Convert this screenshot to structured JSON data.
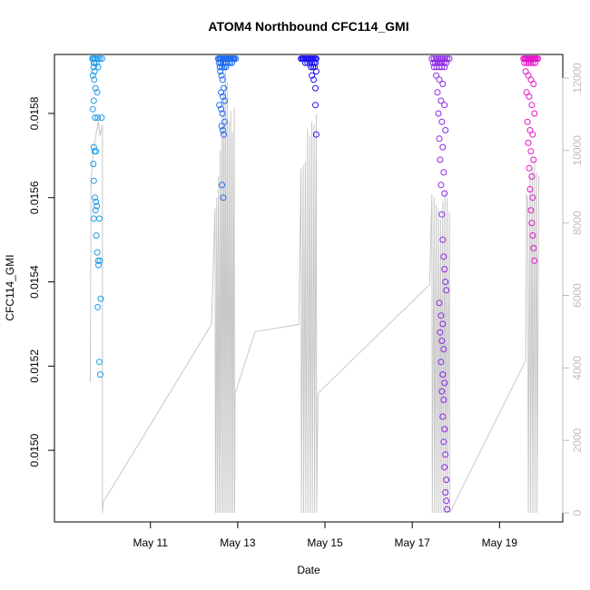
{
  "chart_data": {
    "type": "scatter",
    "title": "ATOM4 Northbound CFC114_GMI",
    "xlabel": "Date",
    "ylabel": "CFC114_GMI",
    "x_range_days": [
      8.8,
      20.45
    ],
    "y_range": [
      0.01483,
      0.01594
    ],
    "y2_range": [
      -250,
      12650
    ],
    "x_ticks": [
      {
        "value": 11,
        "label": "May 11"
      },
      {
        "value": 13,
        "label": "May 13"
      },
      {
        "value": 15,
        "label": "May 15"
      },
      {
        "value": 17,
        "label": "May 17"
      },
      {
        "value": 19,
        "label": "May 19"
      }
    ],
    "y_ticks": [
      {
        "value": 0.015,
        "label": "0.0150"
      },
      {
        "value": 0.0152,
        "label": "0.0152"
      },
      {
        "value": 0.0154,
        "label": "0.0154"
      },
      {
        "value": 0.0156,
        "label": "0.0156"
      },
      {
        "value": 0.0158,
        "label": "0.0158"
      }
    ],
    "y2_ticks": [
      {
        "value": 0,
        "label": "0"
      },
      {
        "value": 2000,
        "label": "2000"
      },
      {
        "value": 4000,
        "label": "4000"
      },
      {
        "value": 6000,
        "label": "6000"
      },
      {
        "value": 8000,
        "label": "8000"
      },
      {
        "value": 10000,
        "label": "10000"
      },
      {
        "value": 12000,
        "label": "12000"
      }
    ],
    "grid": false,
    "legend": "none",
    "altitude_line_color": "#c8c8c8",
    "series": [
      {
        "color": "#1e9be6",
        "x": [
          9.67,
          9.68,
          9.69,
          9.7,
          9.71,
          9.72,
          9.75,
          9.8,
          9.84,
          9.89,
          9.7,
          9.72,
          9.68,
          9.71,
          9.76,
          9.8,
          9.74,
          9.78,
          9.7,
          9.68,
          9.73,
          9.79,
          9.88,
          9.7,
          9.72,
          9.69,
          9.75,
          9.7,
          9.73,
          9.75,
          9.77,
          9.74,
          9.7,
          9.83,
          9.76,
          9.78,
          9.8,
          9.81,
          9.84,
          9.86,
          9.79,
          9.83,
          9.85
        ],
        "y": [
          0.01593,
          0.01593,
          0.01593,
          0.01592,
          0.01592,
          0.01593,
          0.01593,
          0.01593,
          0.01593,
          0.01593,
          0.01591,
          0.0159,
          0.01589,
          0.01588,
          0.01592,
          0.01591,
          0.01586,
          0.01585,
          0.01583,
          0.01581,
          0.01579,
          0.01579,
          0.01579,
          0.01572,
          0.01571,
          0.01568,
          0.01571,
          0.01564,
          0.0156,
          0.01559,
          0.01558,
          0.01557,
          0.01555,
          0.01555,
          0.01551,
          0.01547,
          0.01545,
          0.01544,
          0.01545,
          0.01536,
          0.01534,
          0.01521,
          0.01518
        ]
      },
      {
        "color": "#1e6cf0",
        "x": [
          12.55,
          12.58,
          12.6,
          12.62,
          12.65,
          12.68,
          12.7,
          12.72,
          12.75,
          12.78,
          12.8,
          12.82,
          12.85,
          12.88,
          12.9,
          12.92,
          12.95,
          12.57,
          12.61,
          12.66,
          12.71,
          12.74,
          12.79,
          12.83,
          12.87,
          12.59,
          12.64,
          12.69,
          12.73,
          12.6,
          12.63,
          12.65,
          12.68,
          12.62,
          12.66,
          12.7,
          12.58,
          12.62,
          12.65,
          12.7,
          12.63,
          12.66,
          12.68,
          12.64,
          12.67
        ],
        "y": [
          0.01593,
          0.01593,
          0.01593,
          0.01593,
          0.01593,
          0.01593,
          0.01593,
          0.01593,
          0.01593,
          0.01593,
          0.01593,
          0.01593,
          0.01593,
          0.01593,
          0.01593,
          0.01593,
          0.01593,
          0.01592,
          0.01592,
          0.01592,
          0.01592,
          0.01592,
          0.01592,
          0.01592,
          0.01592,
          0.01591,
          0.01591,
          0.01591,
          0.01591,
          0.0159,
          0.01589,
          0.01588,
          0.01586,
          0.01585,
          0.01584,
          0.01583,
          0.01582,
          0.01581,
          0.0158,
          0.01578,
          0.01577,
          0.01576,
          0.01575,
          0.01563,
          0.0156
        ]
      },
      {
        "color": "#1e14f0",
        "x": [
          14.45,
          14.48,
          14.5,
          14.52,
          14.55,
          14.58,
          14.6,
          14.62,
          14.65,
          14.68,
          14.7,
          14.72,
          14.75,
          14.78,
          14.8,
          14.55,
          14.6,
          14.65,
          14.7,
          14.75,
          14.78,
          14.68,
          14.72,
          14.76,
          14.8,
          14.7,
          14.74,
          14.78,
          14.78,
          14.8
        ],
        "y": [
          0.01593,
          0.01593,
          0.01593,
          0.01593,
          0.01593,
          0.01593,
          0.01593,
          0.01593,
          0.01593,
          0.01593,
          0.01593,
          0.01593,
          0.01593,
          0.01593,
          0.01593,
          0.01592,
          0.01592,
          0.01592,
          0.01592,
          0.01592,
          0.01592,
          0.01591,
          0.01591,
          0.01591,
          0.0159,
          0.01589,
          0.01588,
          0.01586,
          0.01582,
          0.01575
        ]
      },
      {
        "color": "#8c28e6",
        "x": [
          17.45,
          17.5,
          17.55,
          17.6,
          17.65,
          17.7,
          17.75,
          17.8,
          17.85,
          17.48,
          17.53,
          17.58,
          17.63,
          17.68,
          17.73,
          17.78,
          17.5,
          17.56,
          17.62,
          17.68,
          17.74,
          17.55,
          17.62,
          17.7,
          17.58,
          17.66,
          17.74,
          17.6,
          17.68,
          17.76,
          17.62,
          17.7,
          17.64,
          17.72,
          17.66,
          17.74,
          17.68,
          17.7,
          17.72,
          17.74,
          17.76,
          17.78,
          17.62,
          17.66,
          17.7,
          17.64,
          17.68,
          17.72,
          17.66,
          17.7,
          17.74,
          17.68,
          17.72,
          17.7,
          17.74,
          17.72,
          17.76,
          17.74,
          17.78,
          17.76,
          17.78,
          17.8
        ],
        "y": [
          0.01593,
          0.01593,
          0.01593,
          0.01593,
          0.01593,
          0.01593,
          0.01593,
          0.01593,
          0.01593,
          0.01592,
          0.01592,
          0.01592,
          0.01592,
          0.01592,
          0.01592,
          0.01592,
          0.01591,
          0.01591,
          0.01591,
          0.01591,
          0.01591,
          0.01589,
          0.01588,
          0.01587,
          0.01585,
          0.01583,
          0.01582,
          0.0158,
          0.01578,
          0.01576,
          0.01574,
          0.01572,
          0.01569,
          0.01566,
          0.01563,
          0.01561,
          0.01556,
          0.0155,
          0.01546,
          0.01543,
          0.0154,
          0.01538,
          0.01535,
          0.01532,
          0.0153,
          0.01528,
          0.01526,
          0.01524,
          0.01521,
          0.01518,
          0.01516,
          0.01514,
          0.01512,
          0.01508,
          0.01505,
          0.01502,
          0.01499,
          0.01496,
          0.01493,
          0.0149,
          0.01488,
          0.01486
        ]
      },
      {
        "color": "#e614c8",
        "x": [
          19.55,
          19.58,
          19.6,
          19.62,
          19.65,
          19.68,
          19.7,
          19.72,
          19.75,
          19.78,
          19.8,
          19.82,
          19.85,
          19.88,
          19.57,
          19.62,
          19.67,
          19.72,
          19.77,
          19.82,
          19.6,
          19.66,
          19.72,
          19.78,
          19.62,
          19.68,
          19.74,
          19.8,
          19.64,
          19.7,
          19.76,
          19.66,
          19.72,
          19.78,
          19.68,
          19.74,
          19.7,
          19.76,
          19.72,
          19.74,
          19.76,
          19.78,
          19.8
        ],
        "y": [
          0.01593,
          0.01593,
          0.01593,
          0.01593,
          0.01593,
          0.01593,
          0.01593,
          0.01593,
          0.01593,
          0.01593,
          0.01593,
          0.01593,
          0.01593,
          0.01593,
          0.01592,
          0.01592,
          0.01592,
          0.01592,
          0.01592,
          0.01592,
          0.0159,
          0.01589,
          0.01588,
          0.01587,
          0.01585,
          0.01584,
          0.01582,
          0.0158,
          0.01578,
          0.01576,
          0.01575,
          0.01573,
          0.01571,
          0.01569,
          0.01567,
          0.01565,
          0.01562,
          0.0156,
          0.01557,
          0.01554,
          0.01551,
          0.01548,
          0.01545
        ]
      }
    ],
    "altitude": {
      "x": [
        9.62,
        9.64,
        9.66,
        9.67,
        9.68,
        9.7,
        9.72,
        9.74,
        9.76,
        9.78,
        9.8,
        9.82,
        9.84,
        9.86,
        9.88,
        9.9,
        9.9,
        9.92,
        12.4,
        12.48,
        12.49,
        12.52,
        12.53,
        12.56,
        12.57,
        12.6,
        12.61,
        12.64,
        12.65,
        12.68,
        12.69,
        12.72,
        12.73,
        12.76,
        12.77,
        12.8,
        12.81,
        12.84,
        12.85,
        12.88,
        12.89,
        12.92,
        12.93,
        12.94,
        13.4,
        14.4,
        14.45,
        14.46,
        14.5,
        14.51,
        14.55,
        14.56,
        14.6,
        14.61,
        14.65,
        14.66,
        14.7,
        14.71,
        14.75,
        14.76,
        14.8,
        14.81,
        14.84,
        17.4,
        17.45,
        17.46,
        17.5,
        17.51,
        17.55,
        17.56,
        17.6,
        17.61,
        17.65,
        17.66,
        17.7,
        17.71,
        17.75,
        17.76,
        17.8,
        17.81,
        17.85,
        17.86,
        19.6,
        19.62,
        19.65,
        19.66,
        19.7,
        19.71,
        19.75,
        19.76,
        19.8,
        19.81,
        19.85,
        19.86,
        19.9
      ],
      "y": [
        3600,
        9300,
        9400,
        9600,
        9900,
        10100,
        10200,
        10300,
        10500,
        10600,
        10800,
        10700,
        10400,
        10500,
        10600,
        10700,
        0,
        300,
        5200,
        8400,
        0,
        8700,
        0,
        9300,
        0,
        10000,
        0,
        11000,
        0,
        11600,
        0,
        12300,
        0,
        11900,
        0,
        10800,
        0,
        11100,
        0,
        10500,
        0,
        11200,
        0,
        3300,
        5000,
        5200,
        9500,
        0,
        9600,
        0,
        9700,
        0,
        10600,
        0,
        10400,
        0,
        10800,
        0,
        10700,
        0,
        11000,
        0,
        3300,
        6300,
        8800,
        0,
        8700,
        0,
        8500,
        0,
        8400,
        0,
        8100,
        0,
        8600,
        0,
        8900,
        0,
        8700,
        0,
        8300,
        0,
        4200,
        8800,
        8600,
        0,
        9300,
        0,
        9500,
        0,
        9700,
        0,
        9400,
        0,
        9300
      ]
    }
  }
}
